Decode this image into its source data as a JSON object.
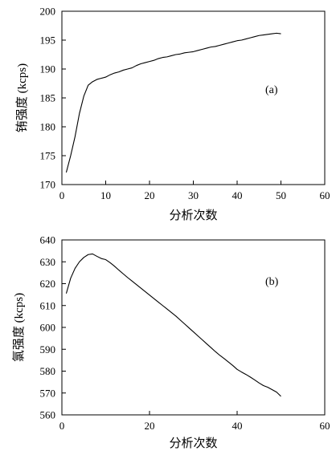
{
  "chart_data": [
    {
      "type": "line",
      "panel_label": "(a)",
      "xlabel": "分析次数",
      "ylabel": "铕强度 (kcps)",
      "xlim": [
        0,
        60
      ],
      "ylim": [
        170,
        200
      ],
      "xticks": [
        "0",
        "10",
        "20",
        "30",
        "40",
        "50",
        "60"
      ],
      "yticks": [
        "170",
        "175",
        "180",
        "185",
        "190",
        "195",
        "200"
      ],
      "grid": false,
      "legend": "none",
      "series": [
        {
          "x": [
            1,
            2,
            3,
            4,
            5,
            6,
            7,
            8,
            9,
            10,
            11,
            12,
            13,
            14,
            15,
            16,
            17,
            18,
            19,
            20,
            21,
            22,
            23,
            24,
            25,
            26,
            27,
            28,
            29,
            30,
            31,
            32,
            33,
            34,
            35,
            36,
            37,
            38,
            39,
            40,
            41,
            42,
            43,
            44,
            45,
            46,
            47,
            48,
            49,
            50
          ],
          "y": [
            172.1,
            175.0,
            178.3,
            182.3,
            185.3,
            187.2,
            187.8,
            188.2,
            188.4,
            188.6,
            189.0,
            189.3,
            189.5,
            189.8,
            190.0,
            190.2,
            190.6,
            190.9,
            191.1,
            191.3,
            191.5,
            191.8,
            192.0,
            192.1,
            192.3,
            192.5,
            192.6,
            192.8,
            192.9,
            193.0,
            193.2,
            193.4,
            193.6,
            193.8,
            193.9,
            194.1,
            194.3,
            194.5,
            194.7,
            194.9,
            195.0,
            195.2,
            195.4,
            195.6,
            195.8,
            195.9,
            196.0,
            196.1,
            196.2,
            196.1
          ]
        }
      ]
    },
    {
      "type": "line",
      "panel_label": "(b)",
      "xlabel": "分析次数",
      "ylabel": "氯强度 (kcps)",
      "xlim": [
        0,
        60
      ],
      "ylim": [
        560,
        640
      ],
      "xticks": [
        "0",
        "20",
        "40",
        "60"
      ],
      "yticks": [
        "560",
        "570",
        "580",
        "590",
        "600",
        "610",
        "620",
        "630",
        "640"
      ],
      "grid": false,
      "legend": "none",
      "series": [
        {
          "x": [
            1,
            2,
            3,
            4,
            5,
            6,
            7,
            8,
            9,
            10,
            11,
            12,
            13,
            14,
            15,
            16,
            17,
            18,
            19,
            20,
            21,
            22,
            23,
            24,
            25,
            26,
            27,
            28,
            29,
            30,
            31,
            32,
            33,
            34,
            35,
            36,
            37,
            38,
            39,
            40,
            41,
            42,
            43,
            44,
            45,
            46,
            47,
            48,
            49,
            50
          ],
          "y": [
            615.5,
            622.5,
            627.0,
            630.0,
            632.0,
            633.3,
            633.6,
            632.5,
            631.5,
            631.0,
            629.6,
            628.0,
            626.2,
            624.5,
            622.8,
            621.2,
            619.6,
            618.0,
            616.4,
            614.8,
            613.2,
            611.6,
            610.0,
            608.4,
            606.8,
            605.2,
            603.4,
            601.6,
            599.8,
            598.0,
            596.2,
            594.4,
            592.6,
            590.8,
            589.0,
            587.3,
            585.8,
            584.2,
            582.6,
            580.8,
            579.6,
            578.5,
            577.3,
            576.0,
            574.6,
            573.4,
            572.6,
            571.5,
            570.4,
            568.5
          ]
        }
      ]
    }
  ]
}
